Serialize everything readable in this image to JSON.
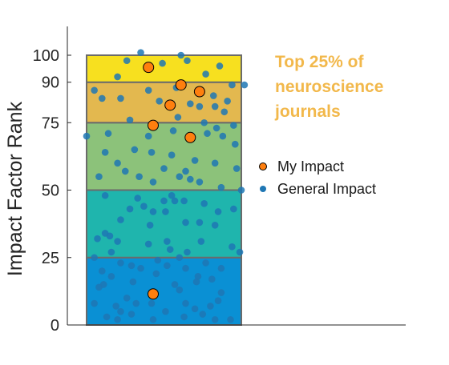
{
  "chart_data": {
    "type": "scatter",
    "ylabel": "Impact Factor Rank",
    "ylim": [
      0,
      110
    ],
    "yticks": [
      0,
      25,
      50,
      75,
      90,
      100
    ],
    "annotation": [
      "Top 25% of",
      "neuroscience",
      "journals"
    ],
    "bands": [
      {
        "from": 0,
        "to": 25,
        "color": "#0a90d4"
      },
      {
        "from": 25,
        "to": 50,
        "color": "#1fb5ad"
      },
      {
        "from": 50,
        "to": 75,
        "color": "#8cc27a"
      },
      {
        "from": 75,
        "to": 90,
        "color": "#e3b84f"
      },
      {
        "from": 90,
        "to": 100,
        "color": "#f7e01f"
      }
    ],
    "legend": {
      "position": "right",
      "entries": [
        "My Impact",
        "General Impact"
      ]
    },
    "series": [
      {
        "name": "My Impact",
        "color": "#ff7f0e",
        "points": [
          {
            "x": 0.4,
            "y": 95.5
          },
          {
            "x": 0.61,
            "y": 89.0
          },
          {
            "x": 0.73,
            "y": 86.5
          },
          {
            "x": 0.54,
            "y": 81.5
          },
          {
            "x": 0.43,
            "y": 74.0
          },
          {
            "x": 0.67,
            "y": 69.5
          },
          {
            "x": 0.43,
            "y": 11.5
          }
        ]
      },
      {
        "name": "General Impact",
        "color": "#1f77b4",
        "points": [
          {
            "x": 0.05,
            "y": 87
          },
          {
            "x": 0.1,
            "y": 84
          },
          {
            "x": 0.2,
            "y": 92
          },
          {
            "x": 0.26,
            "y": 98
          },
          {
            "x": 0.35,
            "y": 101
          },
          {
            "x": 0.49,
            "y": 97
          },
          {
            "x": 0.61,
            "y": 100
          },
          {
            "x": 0.65,
            "y": 98
          },
          {
            "x": 0.77,
            "y": 93
          },
          {
            "x": 0.86,
            "y": 96
          },
          {
            "x": 0.94,
            "y": 89
          },
          {
            "x": 1.02,
            "y": 89
          },
          {
            "x": 0.4,
            "y": 87
          },
          {
            "x": 0.58,
            "y": 88
          },
          {
            "x": 0.82,
            "y": 85
          },
          {
            "x": 0.91,
            "y": 83
          },
          {
            "x": 0.22,
            "y": 84
          },
          {
            "x": 0.47,
            "y": 83
          },
          {
            "x": 0.67,
            "y": 82
          },
          {
            "x": 0.73,
            "y": 81
          },
          {
            "x": 0.83,
            "y": 81
          },
          {
            "x": 0.89,
            "y": 79
          },
          {
            "x": 0.28,
            "y": 76
          },
          {
            "x": 0.59,
            "y": 77
          },
          {
            "x": 0.76,
            "y": 75
          },
          {
            "x": 0.84,
            "y": 73
          },
          {
            "x": 0.95,
            "y": 74
          },
          {
            "x": 0.0,
            "y": 70
          },
          {
            "x": 0.14,
            "y": 71
          },
          {
            "x": 0.4,
            "y": 70
          },
          {
            "x": 0.56,
            "y": 72
          },
          {
            "x": 0.78,
            "y": 71
          },
          {
            "x": 0.88,
            "y": 70
          },
          {
            "x": 0.96,
            "y": 67
          },
          {
            "x": 0.12,
            "y": 64
          },
          {
            "x": 0.31,
            "y": 65
          },
          {
            "x": 0.42,
            "y": 64
          },
          {
            "x": 0.55,
            "y": 63
          },
          {
            "x": 0.7,
            "y": 61
          },
          {
            "x": 0.2,
            "y": 60
          },
          {
            "x": 0.5,
            "y": 58
          },
          {
            "x": 0.64,
            "y": 57
          },
          {
            "x": 0.83,
            "y": 60
          },
          {
            "x": 0.97,
            "y": 58
          },
          {
            "x": 0.25,
            "y": 57
          },
          {
            "x": 0.34,
            "y": 55
          },
          {
            "x": 0.6,
            "y": 55
          },
          {
            "x": 0.73,
            "y": 53
          },
          {
            "x": 0.08,
            "y": 55
          },
          {
            "x": 0.43,
            "y": 53
          },
          {
            "x": 0.67,
            "y": 54
          },
          {
            "x": 0.87,
            "y": 51
          },
          {
            "x": 1.0,
            "y": 50
          },
          {
            "x": 0.12,
            "y": 48
          },
          {
            "x": 0.55,
            "y": 48
          },
          {
            "x": 0.57,
            "y": 46
          },
          {
            "x": 0.33,
            "y": 47
          },
          {
            "x": 0.28,
            "y": 43
          },
          {
            "x": 0.37,
            "y": 44
          },
          {
            "x": 0.5,
            "y": 46
          },
          {
            "x": 0.63,
            "y": 46
          },
          {
            "x": 0.76,
            "y": 45
          },
          {
            "x": 0.85,
            "y": 42
          },
          {
            "x": 0.95,
            "y": 43
          },
          {
            "x": 0.43,
            "y": 42
          },
          {
            "x": 0.51,
            "y": 42
          },
          {
            "x": 0.22,
            "y": 39
          },
          {
            "x": 0.64,
            "y": 38
          },
          {
            "x": 0.73,
            "y": 38
          },
          {
            "x": 0.83,
            "y": 37
          },
          {
            "x": 0.12,
            "y": 34
          },
          {
            "x": 0.15,
            "y": 33
          },
          {
            "x": 0.41,
            "y": 37
          },
          {
            "x": 0.07,
            "y": 32
          },
          {
            "x": 0.2,
            "y": 31
          },
          {
            "x": 0.52,
            "y": 31
          },
          {
            "x": 0.74,
            "y": 31
          },
          {
            "x": 0.94,
            "y": 29
          },
          {
            "x": 0.4,
            "y": 30
          },
          {
            "x": 0.99,
            "y": 27
          },
          {
            "x": 0.16,
            "y": 27
          },
          {
            "x": 0.54,
            "y": 28
          },
          {
            "x": 0.65,
            "y": 27
          },
          {
            "x": 0.05,
            "y": 25
          },
          {
            "x": 0.22,
            "y": 23
          },
          {
            "x": 0.29,
            "y": 22
          },
          {
            "x": 0.46,
            "y": 24
          },
          {
            "x": 0.6,
            "y": 25
          },
          {
            "x": 0.77,
            "y": 23
          },
          {
            "x": 0.87,
            "y": 21
          },
          {
            "x": 0.1,
            "y": 20
          },
          {
            "x": 0.35,
            "y": 21
          },
          {
            "x": 0.52,
            "y": 22
          },
          {
            "x": 0.64,
            "y": 21
          },
          {
            "x": 0.16,
            "y": 18
          },
          {
            "x": 0.45,
            "y": 19
          },
          {
            "x": 0.72,
            "y": 18
          },
          {
            "x": 0.81,
            "y": 17
          },
          {
            "x": 0.11,
            "y": 15
          },
          {
            "x": 0.3,
            "y": 16
          },
          {
            "x": 0.57,
            "y": 15
          },
          {
            "x": 0.71,
            "y": 16
          },
          {
            "x": 0.08,
            "y": 14
          },
          {
            "x": 0.6,
            "y": 13
          },
          {
            "x": 0.87,
            "y": 12
          },
          {
            "x": 0.26,
            "y": 10
          },
          {
            "x": 0.85,
            "y": 9
          },
          {
            "x": 0.42,
            "y": 8
          },
          {
            "x": 0.64,
            "y": 8
          },
          {
            "x": 0.8,
            "y": 7
          },
          {
            "x": 0.19,
            "y": 7
          },
          {
            "x": 0.32,
            "y": 8
          },
          {
            "x": 0.05,
            "y": 8
          },
          {
            "x": 0.7,
            "y": 6
          },
          {
            "x": 0.22,
            "y": 5
          },
          {
            "x": 0.29,
            "y": 4
          },
          {
            "x": 0.51,
            "y": 5
          },
          {
            "x": 0.75,
            "y": 4
          },
          {
            "x": 0.13,
            "y": 3
          },
          {
            "x": 0.63,
            "y": 3
          },
          {
            "x": 0.83,
            "y": 2
          },
          {
            "x": 0.43,
            "y": 2
          },
          {
            "x": 0.93,
            "y": 2
          },
          {
            "x": 0.2,
            "y": 2
          }
        ]
      }
    ]
  }
}
